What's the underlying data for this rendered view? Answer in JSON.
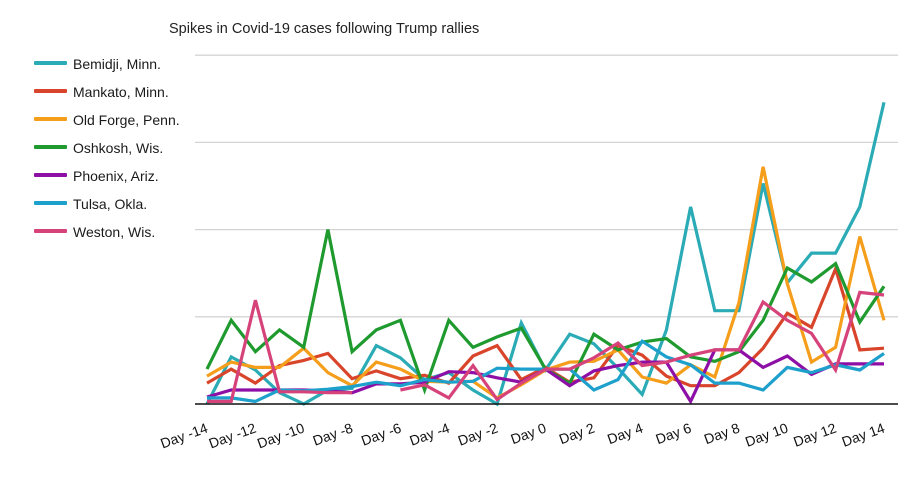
{
  "chart_data": {
    "type": "line",
    "title": "Spikes in Covid-19 cases following Trump rallies",
    "xlabel": "",
    "ylabel": "",
    "grid": true,
    "legend_position": "left",
    "ylim": [
      0,
      4
    ],
    "y_gridlines": [
      1,
      2,
      3,
      4
    ],
    "y_units_note": "no y tick labels shown; values are relative to gridline spacing",
    "x": [
      -14,
      -13,
      -12,
      -11,
      -10,
      -9,
      -8,
      -7,
      -6,
      -5,
      -4,
      -3,
      -2,
      -1,
      0,
      1,
      2,
      3,
      4,
      5,
      6,
      7,
      8,
      9,
      10,
      11,
      12,
      13,
      14
    ],
    "x_tick_labels": [
      "Day -14",
      "Day -12",
      "Day -10",
      "Day -8",
      "Day -6",
      "Day -4",
      "Day -2",
      "Day 0",
      "Day 2",
      "Day 4",
      "Day 6",
      "Day 8",
      "Day 10",
      "Day 12",
      "Day 14"
    ],
    "x_tick_values": [
      -14,
      -12,
      -10,
      -8,
      -6,
      -4,
      -2,
      0,
      2,
      4,
      6,
      8,
      10,
      12,
      14
    ],
    "series": [
      {
        "name": "Bemidji, Minn.",
        "color": "#2BABB5",
        "values": [
          0.0,
          0.54,
          0.39,
          0.13,
          0.0,
          0.16,
          0.18,
          0.67,
          0.53,
          0.28,
          0.36,
          0.16,
          0.0,
          0.93,
          0.39,
          0.8,
          0.69,
          0.41,
          0.11,
          0.85,
          2.26,
          1.07,
          1.07,
          2.53,
          1.39,
          1.73,
          1.73,
          2.26,
          3.46
        ]
      },
      {
        "name": "Mankato, Minn.",
        "color": "#D9452B",
        "values": [
          0.24,
          0.4,
          0.24,
          0.44,
          0.5,
          0.58,
          0.29,
          0.38,
          0.29,
          0.33,
          0.24,
          0.55,
          0.67,
          0.28,
          0.42,
          0.25,
          0.3,
          0.67,
          0.56,
          0.32,
          0.21,
          0.21,
          0.36,
          0.64,
          1.04,
          0.88,
          1.55,
          0.62,
          0.64
        ]
      },
      {
        "name": "Old Forge, Penn.",
        "color": "#F59E1B",
        "values": [
          0.32,
          0.48,
          0.42,
          0.42,
          0.64,
          0.36,
          0.21,
          0.48,
          0.4,
          0.26,
          0.25,
          0.26,
          0.07,
          0.22,
          0.39,
          0.48,
          0.49,
          0.62,
          0.31,
          0.24,
          0.45,
          0.31,
          1.16,
          2.72,
          1.38,
          0.48,
          0.65,
          1.92,
          0.96
        ]
      },
      {
        "name": "Oshkosh, Wis.",
        "color": "#1F9A2E",
        "values": [
          0.4,
          0.96,
          0.6,
          0.85,
          0.65,
          2.0,
          0.6,
          0.85,
          0.96,
          0.16,
          0.96,
          0.65,
          0.77,
          0.87,
          0.4,
          0.24,
          0.8,
          0.62,
          0.71,
          0.75,
          0.54,
          0.49,
          0.6,
          0.96,
          1.56,
          1.4,
          1.61,
          0.94,
          1.35
        ]
      },
      {
        "name": "Phoenix, Ariz.",
        "color": "#8E0FA6",
        "values": [
          0.08,
          0.16,
          0.16,
          0.16,
          0.16,
          0.15,
          0.13,
          0.23,
          0.23,
          0.25,
          0.37,
          0.36,
          0.3,
          0.25,
          0.4,
          0.21,
          0.38,
          0.44,
          0.48,
          0.48,
          0.03,
          0.62,
          0.62,
          0.42,
          0.55,
          0.34,
          0.46,
          0.46,
          0.46
        ]
      },
      {
        "name": "Tulsa, Okla.",
        "color": "#1DA0CC",
        "values": [
          0.07,
          0.07,
          0.03,
          0.16,
          0.15,
          0.17,
          0.2,
          0.25,
          0.21,
          0.28,
          0.25,
          0.26,
          0.41,
          0.4,
          0.4,
          0.4,
          0.16,
          0.28,
          0.72,
          0.54,
          0.45,
          0.24,
          0.24,
          0.16,
          0.42,
          0.36,
          0.45,
          0.39,
          0.58
        ]
      },
      {
        "name": "Weston, Wis.",
        "color": "#D6437B",
        "values": [
          0.03,
          0.03,
          1.19,
          0.14,
          0.14,
          0.13,
          0.13,
          null,
          0.16,
          0.22,
          0.07,
          0.44,
          0.05,
          0.24,
          0.4,
          0.4,
          0.53,
          0.7,
          0.44,
          0.48,
          0.56,
          0.62,
          0.62,
          1.17,
          0.96,
          0.81,
          0.39,
          1.28,
          1.25
        ]
      }
    ]
  }
}
